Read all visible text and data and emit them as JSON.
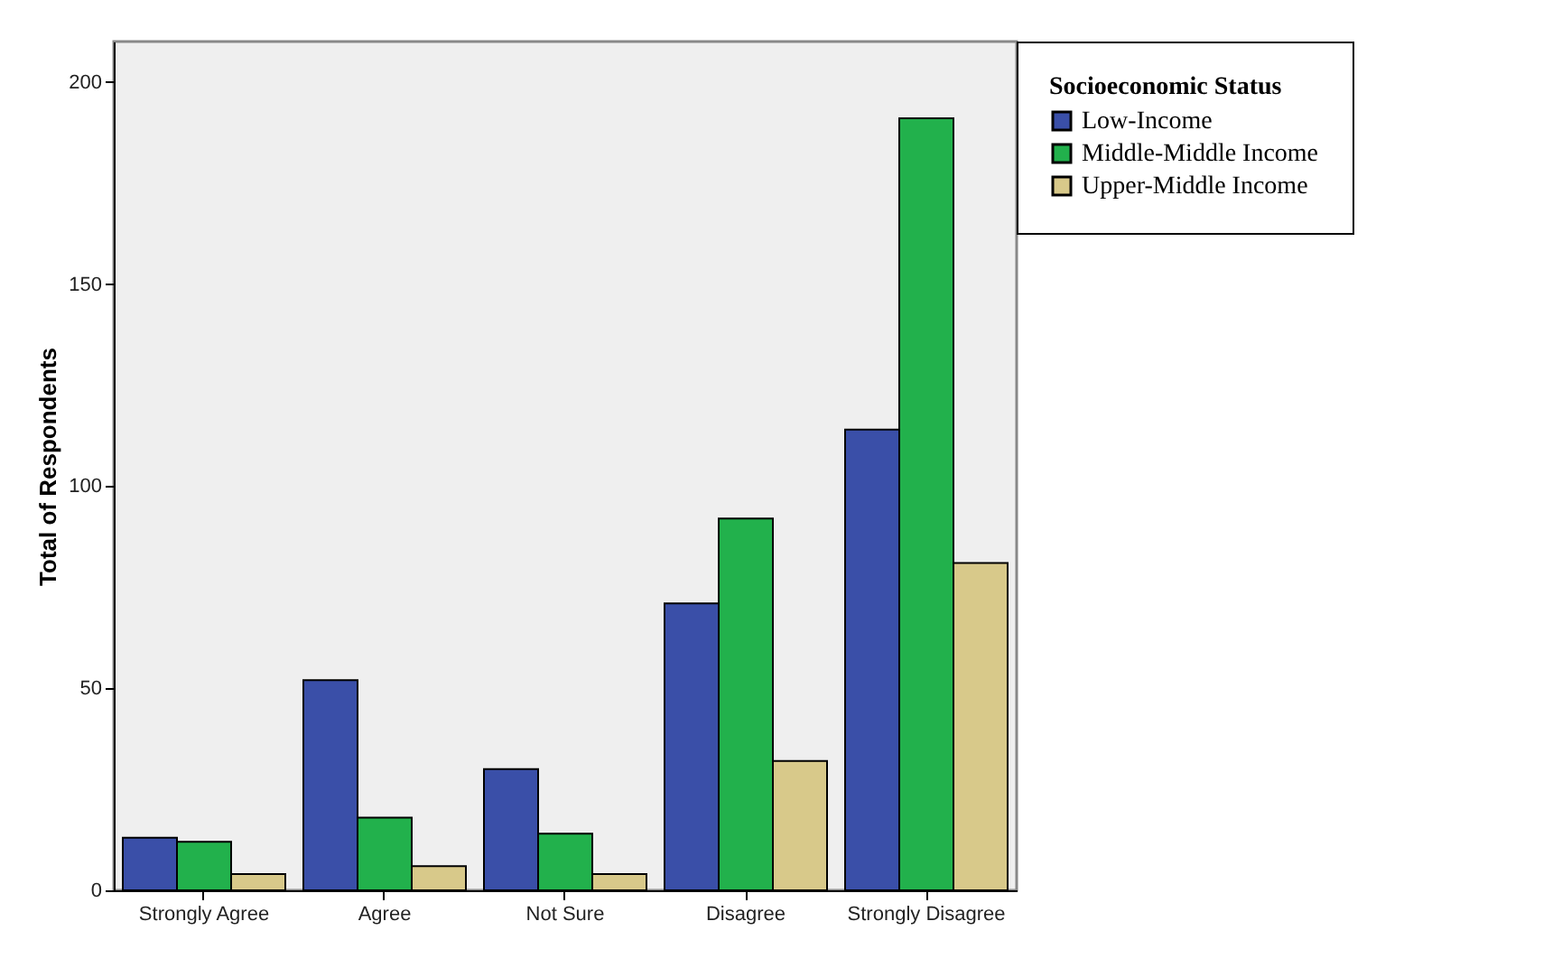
{
  "chart_data": {
    "type": "bar",
    "ylabel": "Total of Respondents",
    "legend_title": "Socioeconomic Status",
    "legend": "top right",
    "categories": [
      "Strongly Agree",
      "Agree",
      "Not Sure",
      "Disagree",
      "Strongly Disagree"
    ],
    "series": [
      {
        "name": "Low-Income",
        "color": "#3a4fa8",
        "values": [
          13,
          52,
          30,
          71,
          114
        ]
      },
      {
        "name": "Middle-Middle Income",
        "color": "#22b14c",
        "values": [
          12,
          18,
          14,
          92,
          191
        ]
      },
      {
        "name": "Upper-Middle Income",
        "color": "#d8c98a",
        "values": [
          4,
          6,
          4,
          32,
          81
        ]
      }
    ],
    "ylim": [
      0,
      210
    ],
    "yticks": [
      0,
      50,
      100,
      150,
      200
    ],
    "grid": false
  }
}
